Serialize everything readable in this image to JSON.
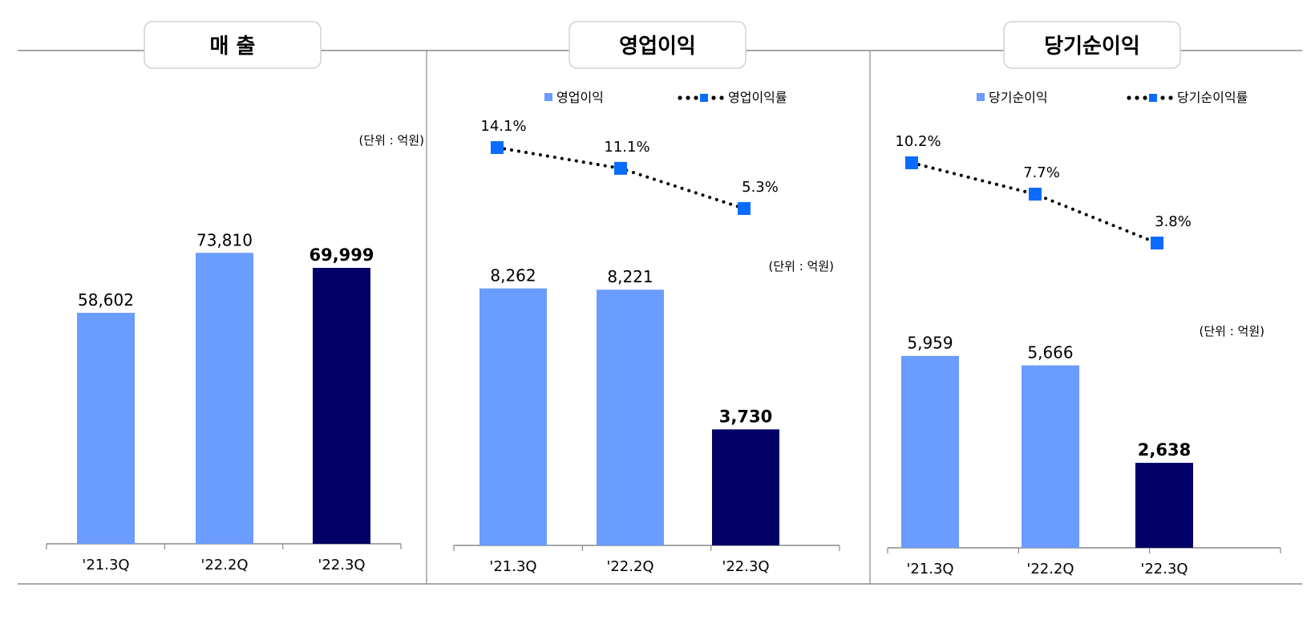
{
  "chart_data": [
    {
      "type": "bar",
      "title": "매 출",
      "unit_label": "(단위 : 억원)",
      "categories": [
        "'21.3Q",
        "'22.2Q",
        "'22.3Q"
      ],
      "values": [
        58602,
        73810,
        69999
      ],
      "value_labels": [
        "58,602",
        "73,810",
        "69,999"
      ],
      "colors": [
        "#6b9cff",
        "#6b9cff",
        "#000066"
      ],
      "ylim": [
        0,
        100000
      ]
    },
    {
      "type": "bar+line",
      "title": "영업이익",
      "unit_label": "(단위 : 억원)",
      "legend": [
        "영업이익",
        "영업이익률"
      ],
      "categories": [
        "'21.3Q",
        "'22.2Q",
        "'22.3Q"
      ],
      "values": [
        8262,
        8221,
        3730
      ],
      "value_labels": [
        "8,262",
        "8,221",
        "3,730"
      ],
      "rates": [
        14.1,
        11.1,
        5.3
      ],
      "rate_labels": [
        "14.1%",
        "11.1%",
        "5.3%"
      ],
      "colors": [
        "#6b9cff",
        "#6b9cff",
        "#000066"
      ],
      "ylim": [
        0,
        12500
      ]
    },
    {
      "type": "bar+line",
      "title": "당기순이익",
      "unit_label": "(단위 : 억원)",
      "legend": [
        "당기순이익",
        "당기순이익률"
      ],
      "categories": [
        "'21.3Q",
        "'22.2Q",
        "'22.3Q"
      ],
      "values": [
        5959,
        5666,
        2638
      ],
      "value_labels": [
        "5,959",
        "5,666",
        "2,638"
      ],
      "rates": [
        10.2,
        7.7,
        3.8
      ],
      "rate_labels": [
        "10.2%",
        "7.7%",
        "3.8%"
      ],
      "colors": [
        "#6b9cff",
        "#6b9cff",
        "#000066"
      ],
      "ylim": [
        0,
        10000
      ]
    }
  ],
  "colors": {
    "bar_light": "#6b9cff",
    "bar_dark": "#000066",
    "marker": "#0a6cff",
    "line": "#000000"
  }
}
